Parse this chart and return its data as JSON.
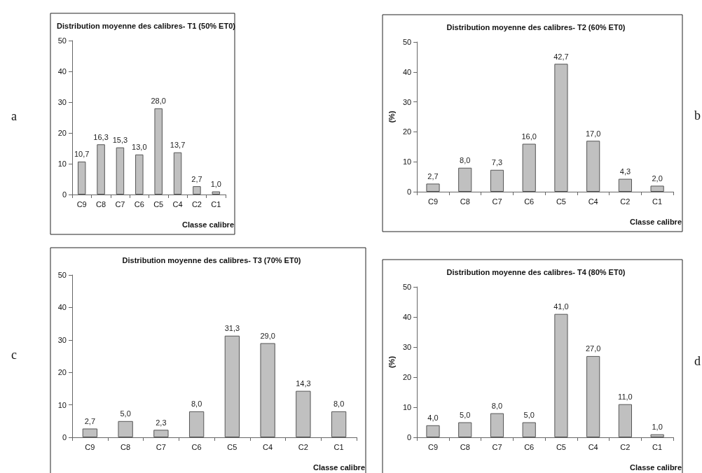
{
  "chart_data": [
    {
      "type": "bar",
      "title": "Distribution moyenne des calibres- T1 (50% ET0)",
      "xlabel": "Classe calibre",
      "categories": [
        "C9",
        "C8",
        "C7",
        "C6",
        "C5",
        "C4",
        "C2",
        "C1"
      ],
      "values": [
        10.7,
        16.3,
        15.3,
        13.0,
        28.0,
        13.7,
        2.7,
        1.0
      ],
      "value_labels": [
        "10,7",
        "16,3",
        "15,3",
        "13,0",
        "28,0",
        "13,7",
        "2,7",
        "1,0"
      ],
      "color": "#c0c0c0",
      "ylim": [
        0,
        50
      ],
      "yticks": [
        0,
        10,
        20,
        30,
        40,
        50
      ],
      "annotations": [
        "a"
      ]
    },
    {
      "type": "bar",
      "title": "Distribution moyenne des calibres- T2 (60% ET0)",
      "xlabel": "Classe calibre",
      "ylabel": "(%)",
      "categories": [
        "C9",
        "C8",
        "C7",
        "C6",
        "C5",
        "C4",
        "C2",
        "C1"
      ],
      "values": [
        2.7,
        8.0,
        7.3,
        16.0,
        42.7,
        17.0,
        4.3,
        2.0
      ],
      "value_labels": [
        "2,7",
        "8,0",
        "7,3",
        "16,0",
        "42,7",
        "17,0",
        "4,3",
        "2,0"
      ],
      "color": "#c0c0c0",
      "ylim": [
        0,
        50
      ],
      "yticks": [
        0,
        10,
        20,
        30,
        40,
        50
      ],
      "annotations": [
        "b"
      ]
    },
    {
      "type": "bar",
      "title": "Distribution moyenne des calibres- T3 (70% ET0)",
      "xlabel": "Classe calibre",
      "categories": [
        "C9",
        "C8",
        "C7",
        "C6",
        "C5",
        "C4",
        "C2",
        "C1"
      ],
      "values": [
        2.7,
        5.0,
        2.3,
        8.0,
        31.3,
        29.0,
        14.3,
        8.0
      ],
      "value_labels": [
        "2,7",
        "5,0",
        "2,3",
        "8,0",
        "31,3",
        "29,0",
        "14,3",
        "8,0"
      ],
      "color": "#c0c0c0",
      "ylim": [
        0,
        50
      ],
      "yticks": [
        0,
        10,
        20,
        30,
        40,
        50
      ],
      "annotations": [
        "c"
      ]
    },
    {
      "type": "bar",
      "title": "Distribution moyenne des calibres- T4 (80% ET0)",
      "xlabel": "Classe calibre",
      "ylabel": "(%)",
      "categories": [
        "C9",
        "C8",
        "C7",
        "C6",
        "C5",
        "C4",
        "C2",
        "C1"
      ],
      "values": [
        4.0,
        5.0,
        8.0,
        5.0,
        41.0,
        27.0,
        11.0,
        1.0
      ],
      "value_labels": [
        "4,0",
        "5,0",
        "8,0",
        "5,0",
        "41,0",
        "27,0",
        "11,0",
        "1,0"
      ],
      "color": "#c0c0c0",
      "ylim": [
        0,
        50
      ],
      "yticks": [
        0,
        10,
        20,
        30,
        40,
        50
      ],
      "annotations": [
        "d"
      ]
    }
  ]
}
